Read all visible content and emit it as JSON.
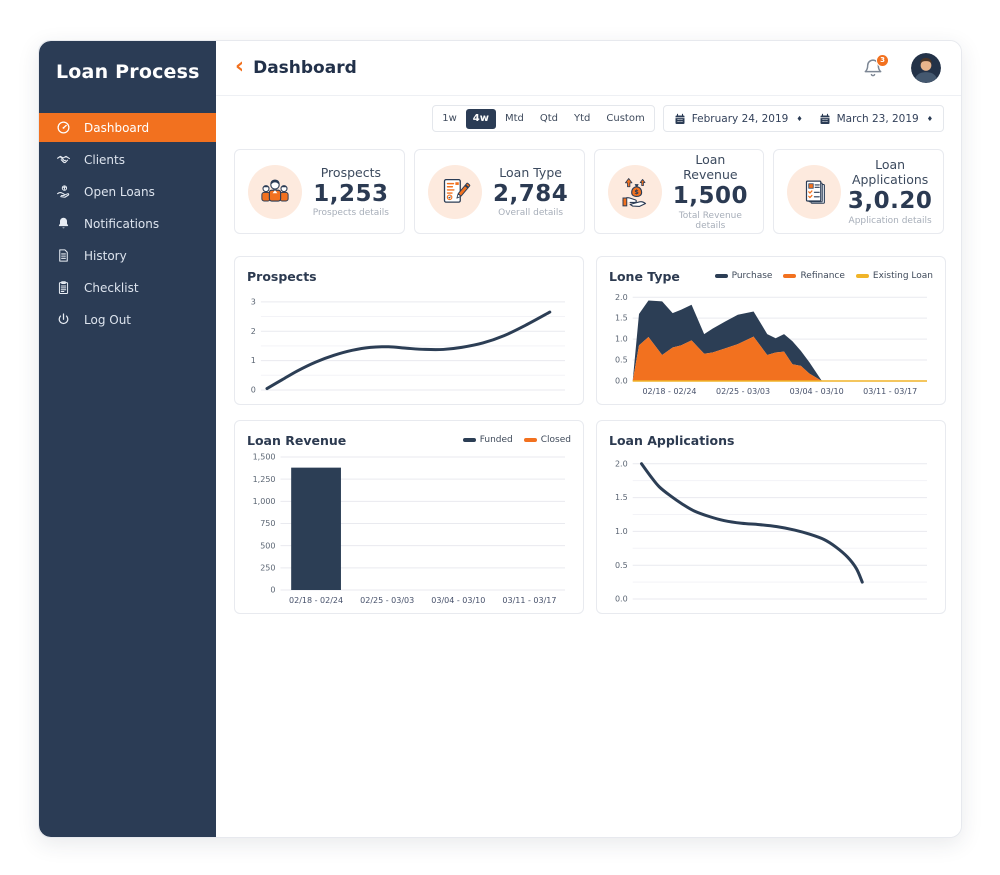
{
  "app": {
    "title": "Loan Process"
  },
  "sidebar": {
    "items": [
      {
        "label": "Dashboard",
        "icon": "dashboard-gauge-icon",
        "active": true
      },
      {
        "label": "Clients",
        "icon": "clients-handshake-icon",
        "active": false
      },
      {
        "label": "Open Loans",
        "icon": "open-loans-hand-coin-icon",
        "active": false
      },
      {
        "label": "Notifications",
        "icon": "notifications-bell-icon",
        "active": false
      },
      {
        "label": "History",
        "icon": "history-document-icon",
        "active": false
      },
      {
        "label": "Checklist",
        "icon": "checklist-clipboard-icon",
        "active": false
      },
      {
        "label": "Log Out",
        "icon": "logout-power-icon",
        "active": false
      }
    ]
  },
  "header": {
    "back_glyph": "‹",
    "title": "Dashboard",
    "notification_count": "3"
  },
  "filters": {
    "ranges": [
      "1w",
      "4w",
      "Mtd",
      "Qtd",
      "Ytd",
      "Custom"
    ],
    "active_range": "4w",
    "date_from": "February 24, 2019",
    "date_to": "March 23, 2019",
    "sort_glyph": "♦",
    "calendar_icon": "calendar-icon"
  },
  "stats": [
    {
      "label": "Prospects",
      "value": "1,253",
      "sublabel": "Prospects details",
      "icon": "prospects-people-icon"
    },
    {
      "label": "Loan Type",
      "value": "2,784",
      "sublabel": "Overall details",
      "icon": "loan-type-document-pencil-icon"
    },
    {
      "label": "Loan Revenue",
      "value": "1,500",
      "sublabel": "Total Revenue details",
      "icon": "loan-revenue-money-hand-icon"
    },
    {
      "label": "Loan Applications",
      "value": "3,0.20",
      "sublabel": "Application details",
      "icon": "loan-applications-stacked-docs-icon"
    }
  ],
  "colors": {
    "accent_orange": "#f2711f",
    "navy": "#2b3c55",
    "chart_navy": "#2c3e55",
    "chart_orange": "#f2711f",
    "chart_yellow": "#f0b429",
    "icon_circle_peach": "#fdeade",
    "grid_major": "#e9eaef",
    "grid_minor": "#f3f3f7"
  },
  "chart_data": [
    {
      "id": "prospects",
      "type": "line",
      "title": "Prospects",
      "ylim": [
        0,
        3.3
      ],
      "yticks": [
        {
          "v": 0,
          "label": "0"
        },
        {
          "v": 1,
          "label": "1"
        },
        {
          "v": 2,
          "label": "2"
        },
        {
          "v": 3,
          "label": "3"
        }
      ],
      "minor_gridlines": [
        0.5,
        1.5,
        2.5
      ],
      "xlabels": [],
      "legend": [],
      "series": [
        {
          "name": "Prospects",
          "color": "#2c3e55",
          "x": [
            0.02,
            0.07,
            0.12,
            0.18,
            0.24,
            0.3,
            0.36,
            0.42,
            0.48,
            0.54,
            0.6,
            0.66,
            0.73,
            0.8,
            0.87,
            0.95
          ],
          "y": [
            0.05,
            0.35,
            0.65,
            0.95,
            1.18,
            1.35,
            1.45,
            1.47,
            1.42,
            1.38,
            1.38,
            1.45,
            1.6,
            1.85,
            2.2,
            2.65
          ]
        }
      ]
    },
    {
      "id": "lone-type",
      "type": "stacked-area",
      "title": "Lone Type",
      "ylim": [
        0,
        2.1
      ],
      "yticks": [
        {
          "v": 0,
          "label": "0.0"
        },
        {
          "v": 0.5,
          "label": "0.5"
        },
        {
          "v": 1,
          "label": "1.0"
        },
        {
          "v": 1.5,
          "label": "1.5"
        },
        {
          "v": 2,
          "label": "2.0"
        }
      ],
      "minor_gridlines": [],
      "xlabels": [
        "02/18 - 02/24",
        "02/25 - 03/03",
        "03/04 - 03/10",
        "03/11 - 03/17"
      ],
      "legend": [
        {
          "label": "Purchase",
          "color": "#2c3e55"
        },
        {
          "label": "Refinance",
          "color": "#f2711f"
        },
        {
          "label": "Existing Loan",
          "color": "#f0b429"
        }
      ],
      "xdomain": [
        0,
        28
      ],
      "x": [
        0,
        0.6,
        1.5,
        2.8,
        3.8,
        4.6,
        5.6,
        6.8,
        7.6,
        8.8,
        10,
        11.5,
        12.8,
        13.6,
        14.4,
        15.2,
        16,
        16.8,
        18,
        28
      ],
      "series_total_purchase": [
        0,
        1.6,
        1.92,
        1.9,
        1.62,
        1.7,
        1.82,
        1.12,
        1.25,
        1.42,
        1.58,
        1.66,
        1.12,
        1.02,
        1.12,
        0.95,
        0.72,
        0.45,
        0,
        0
      ],
      "series_refinance": [
        0,
        0.85,
        1.05,
        0.62,
        0.8,
        0.85,
        0.97,
        0.65,
        0.68,
        0.78,
        0.88,
        1.06,
        0.62,
        0.68,
        0.7,
        0.4,
        0.36,
        0.18,
        0,
        0
      ],
      "series_existing_loan": [
        0,
        0,
        0,
        0,
        0,
        0,
        0,
        0,
        0,
        0,
        0,
        0,
        0,
        0,
        0,
        0,
        0,
        0,
        0,
        0
      ]
    },
    {
      "id": "loan-revenue",
      "type": "bar",
      "title": "Loan Revenue",
      "ylim": [
        0,
        1500
      ],
      "yticks": [
        {
          "v": 0,
          "label": "0"
        },
        {
          "v": 250,
          "label": "250"
        },
        {
          "v": 500,
          "label": "500"
        },
        {
          "v": 750,
          "label": "750"
        },
        {
          "v": 1000,
          "label": "1,000"
        },
        {
          "v": 1250,
          "label": "1,250"
        },
        {
          "v": 1500,
          "label": "1,500"
        }
      ],
      "minor_gridlines": [],
      "xlabels": [
        "02/18 - 02/24",
        "02/25 - 03/03",
        "03/04 - 03/10",
        "03/11 - 03/17"
      ],
      "legend": [
        {
          "label": "Funded",
          "color": "#2c3e55"
        },
        {
          "label": "Closed",
          "color": "#f2711f"
        }
      ],
      "series": [
        {
          "name": "Funded",
          "color": "#2c3e55",
          "values": [
            1380,
            0,
            0,
            0
          ]
        },
        {
          "name": "Closed",
          "color": "#f2711f",
          "values": [
            0,
            0,
            0,
            0
          ]
        }
      ]
    },
    {
      "id": "loan-applications",
      "type": "line",
      "title": "Loan Applications",
      "ylim": [
        0,
        2.1
      ],
      "yticks": [
        {
          "v": 0,
          "label": "0.0"
        },
        {
          "v": 0.5,
          "label": "0.5"
        },
        {
          "v": 1,
          "label": "1.0"
        },
        {
          "v": 1.5,
          "label": "1.5"
        },
        {
          "v": 2,
          "label": "2.0"
        }
      ],
      "minor_gridlines": [
        0.25,
        0.75,
        1.25,
        1.75
      ],
      "xlabels": [],
      "legend": [],
      "series": [
        {
          "name": "Loan Applications",
          "color": "#2c3e55",
          "x": [
            0.03,
            0.06,
            0.09,
            0.13,
            0.17,
            0.21,
            0.26,
            0.31,
            0.37,
            0.43,
            0.49,
            0.55,
            0.6,
            0.65,
            0.69,
            0.73,
            0.76,
            0.78
          ],
          "y": [
            2.0,
            1.82,
            1.66,
            1.52,
            1.4,
            1.3,
            1.22,
            1.16,
            1.12,
            1.1,
            1.07,
            1.02,
            0.96,
            0.88,
            0.77,
            0.62,
            0.45,
            0.25
          ]
        }
      ]
    }
  ]
}
